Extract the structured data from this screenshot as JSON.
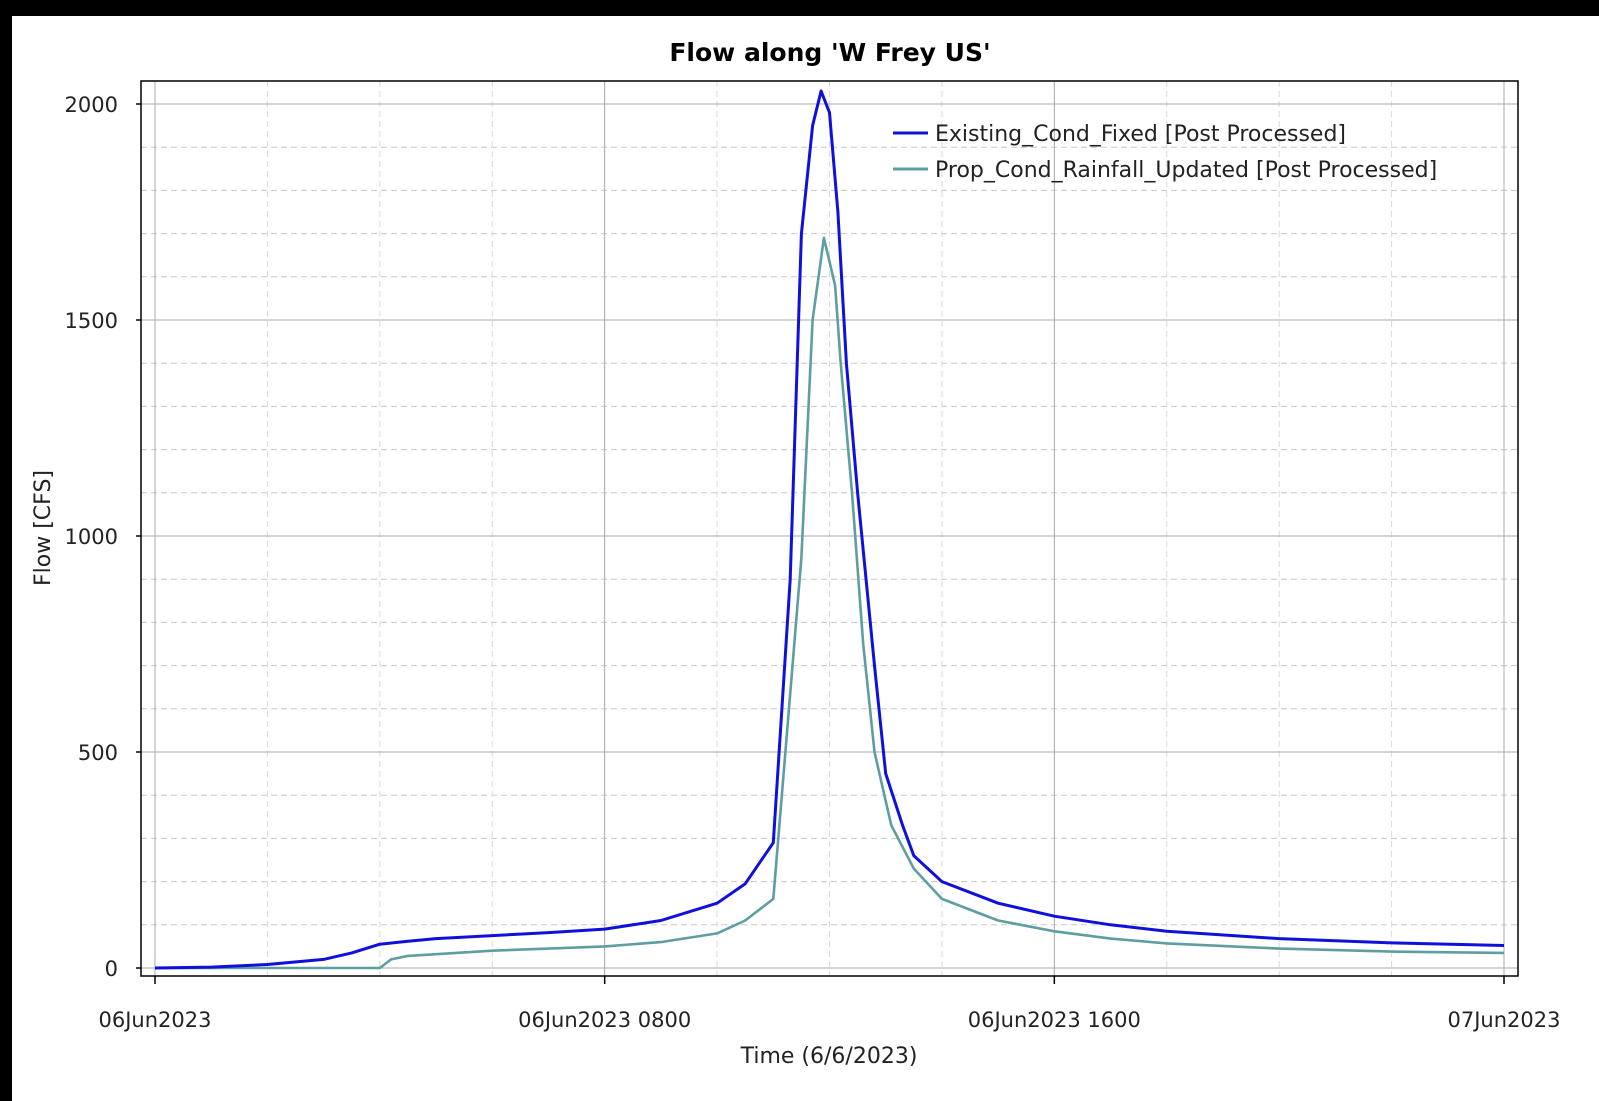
{
  "chart_data": {
    "type": "line",
    "title": "Flow along 'W Frey US'",
    "xlabel": "Time (6/6/2023)",
    "ylabel": "Flow [CFS]",
    "xlim": [
      0,
      24
    ],
    "ylim": [
      0,
      2000
    ],
    "x_ticks": [
      {
        "x": 0,
        "label": "06Jun2023"
      },
      {
        "x": 8,
        "label": "06Jun2023  0800"
      },
      {
        "x": 16,
        "label": "06Jun2023  1600"
      },
      {
        "x": 24,
        "label": "07Jun2023"
      }
    ],
    "y_ticks": [
      0,
      500,
      1000,
      1500,
      2000
    ],
    "grid": "on",
    "legend_position": "top-right",
    "series": [
      {
        "name": "Existing_Cond_Fixed [Post Processed]",
        "color": "#1010dd",
        "x": [
          0,
          1,
          2,
          3,
          3.5,
          4,
          4.5,
          5,
          6,
          7,
          8,
          9,
          10,
          10.5,
          11,
          11.3,
          11.5,
          11.7,
          11.85,
          12,
          12.15,
          12.3,
          12.5,
          12.8,
          13,
          13.3,
          13.5,
          14,
          15,
          16,
          17,
          18,
          20,
          22,
          24
        ],
        "y": [
          0,
          2,
          8,
          20,
          35,
          55,
          62,
          68,
          75,
          82,
          90,
          110,
          150,
          195,
          290,
          900,
          1700,
          1950,
          2030,
          1980,
          1750,
          1400,
          1100,
          700,
          450,
          330,
          260,
          200,
          150,
          120,
          100,
          85,
          68,
          58,
          52
        ]
      },
      {
        "name": "Prop_Cond_Rainfall_Updated [Post Processed]",
        "color": "#5f9ea0",
        "x": [
          0,
          1,
          2,
          3,
          4,
          4.2,
          4.5,
          5,
          6,
          7,
          8,
          9,
          10,
          10.5,
          11,
          11.5,
          11.7,
          11.9,
          12.1,
          12.2,
          12.4,
          12.6,
          12.8,
          13.1,
          13.5,
          14,
          15,
          16,
          17,
          18,
          20,
          22,
          24
        ],
        "y": [
          0,
          0,
          0,
          0,
          0,
          20,
          28,
          32,
          40,
          45,
          50,
          60,
          80,
          110,
          160,
          950,
          1500,
          1690,
          1580,
          1400,
          1100,
          750,
          500,
          330,
          230,
          160,
          110,
          85,
          68,
          57,
          45,
          38,
          35
        ]
      }
    ]
  }
}
